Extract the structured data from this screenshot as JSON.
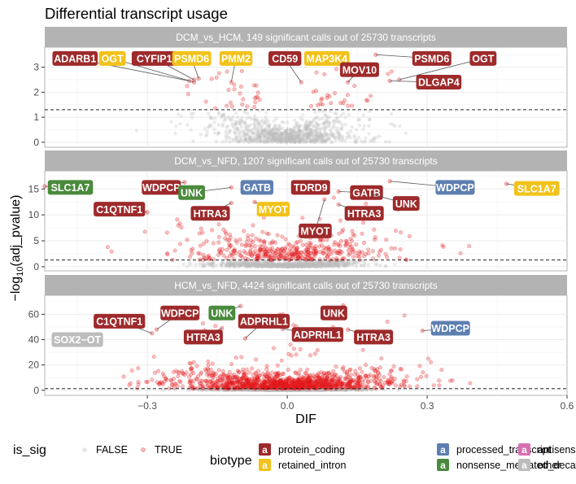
{
  "colors": {
    "protein_coding": "#9E2A2B",
    "retained_intron": "#F2C21A",
    "processed_transcript": "#5E7FB1",
    "nonsense_mediated_decay": "#4A8A3C",
    "antisense": "#D86FB1",
    "other": "#BDBDBD",
    "sig_true": "#E31A1C",
    "sig_false": "#BDBDBD",
    "strip_bg": "#B3B3B3",
    "panel_grid": "#EBEBEB"
  },
  "chart_data": {
    "type": "scatter",
    "title": "Differential transcript usage",
    "xlabel": "DIF",
    "ylabel": "−log10(adj_pvalue)",
    "xlim": [
      -0.52,
      0.6
    ],
    "xticks": [
      -0.3,
      0.0,
      0.3,
      0.6
    ],
    "xtick_labels": [
      "−0.3",
      "0.0",
      "0.3",
      "0.6"
    ],
    "significance_line": "dashed horizontal line at adj_pvalue = 0.05",
    "legend_placement": "bottom",
    "legend": {
      "is_sig_title": "is_sig",
      "is_sig_items": [
        "FALSE",
        "TRUE"
      ],
      "biotype_title": "biotype",
      "biotype_items": [
        {
          "key": "protein_coding",
          "label": "protein_coding"
        },
        {
          "key": "retained_intron",
          "label": "retained_intron"
        },
        {
          "key": "processed_transcript",
          "label": "processed_transcript"
        },
        {
          "key": "nonsense_mediated_decay",
          "label": "nonsense_mediated_decay"
        },
        {
          "key": "antisense",
          "label": "antisense"
        },
        {
          "key": "other",
          "label": "other"
        }
      ],
      "key_glyph": "a"
    },
    "panels": [
      {
        "title": "DCM_vs_HCM, 149 significant calls out of 25730 transcripts",
        "ylim": [
          -0.2,
          3.8
        ],
        "yticks": [
          0,
          1,
          2,
          3
        ],
        "threshold": 1.3,
        "labels": [
          {
            "text": "ADARB1",
            "biotype": "protein_coding",
            "x": -0.21,
            "y": 2.45,
            "lx": -0.455,
            "ly": 3.35
          },
          {
            "text": "OGT",
            "biotype": "retained_intron",
            "x": -0.2,
            "y": 2.4,
            "lx": -0.375,
            "ly": 3.35
          },
          {
            "text": "CYFIP1",
            "biotype": "protein_coding",
            "x": -0.2,
            "y": 2.5,
            "lx": -0.285,
            "ly": 3.35
          },
          {
            "text": "PSMD6",
            "biotype": "retained_intron",
            "x": -0.19,
            "y": 2.55,
            "lx": -0.205,
            "ly": 3.35
          },
          {
            "text": "PMM2",
            "biotype": "retained_intron",
            "x": -0.12,
            "y": 2.4,
            "lx": -0.11,
            "ly": 3.35
          },
          {
            "text": "CD59",
            "biotype": "protein_coding",
            "x": 0.03,
            "y": 2.4,
            "lx": -0.005,
            "ly": 3.35
          },
          {
            "text": "MAP3K4",
            "biotype": "retained_intron",
            "x": 0.13,
            "y": 2.9,
            "lx": 0.085,
            "ly": 3.35
          },
          {
            "text": "MOV10",
            "biotype": "protein_coding",
            "x": 0.13,
            "y": 2.4,
            "lx": 0.155,
            "ly": 2.9
          },
          {
            "text": "PSMD6",
            "biotype": "protein_coding",
            "x": 0.19,
            "y": 3.5,
            "lx": 0.31,
            "ly": 3.35
          },
          {
            "text": "OGT",
            "biotype": "protein_coding",
            "x": 0.24,
            "y": 2.5,
            "lx": 0.42,
            "ly": 3.35
          },
          {
            "text": "DLGAP4",
            "biotype": "protein_coding",
            "x": 0.22,
            "y": 2.45,
            "lx": 0.325,
            "ly": 2.4
          }
        ]
      },
      {
        "title": "DCM_vs_NFD, 1207 significant calls out of 25730 transcripts",
        "ylim": [
          -0.8,
          18.5
        ],
        "yticks": [
          0,
          5,
          10,
          15
        ],
        "threshold": 1.3,
        "labels": [
          {
            "text": "SLC1A7",
            "biotype": "nonsense_mediated_decay",
            "x": -0.52,
            "y": 15.5,
            "lx": -0.465,
            "ly": 15.3
          },
          {
            "text": "WDPCP",
            "biotype": "protein_coding",
            "x": -0.22,
            "y": 16.3,
            "lx": -0.27,
            "ly": 15.3
          },
          {
            "text": "C1QTNF1",
            "biotype": "protein_coding",
            "x": -0.3,
            "y": 10.5,
            "lx": -0.36,
            "ly": 11.1
          },
          {
            "text": "UNK",
            "biotype": "nonsense_mediated_decay",
            "x": -0.12,
            "y": 15.3,
            "lx": -0.205,
            "ly": 14.3
          },
          {
            "text": "GATB",
            "biotype": "processed_transcript",
            "x": -0.08,
            "y": 15.8,
            "lx": -0.065,
            "ly": 15.3
          },
          {
            "text": "HTRA3",
            "biotype": "protein_coding",
            "x": -0.12,
            "y": 12.3,
            "lx": -0.165,
            "ly": 10.3
          },
          {
            "text": "MYOT",
            "biotype": "retained_intron",
            "x": -0.07,
            "y": 12.5,
            "lx": -0.03,
            "ly": 11.1
          },
          {
            "text": "TDRD9",
            "biotype": "protein_coding",
            "x": 0.07,
            "y": 15.5,
            "lx": 0.05,
            "ly": 15.3
          },
          {
            "text": "GATB",
            "biotype": "protein_coding",
            "x": 0.11,
            "y": 14.5,
            "lx": 0.17,
            "ly": 14.3
          },
          {
            "text": "HTRA3",
            "biotype": "protein_coding",
            "x": 0.11,
            "y": 12.0,
            "lx": 0.165,
            "ly": 10.3
          },
          {
            "text": "MYOT",
            "biotype": "protein_coding",
            "x": 0.08,
            "y": 13.0,
            "lx": 0.06,
            "ly": 6.9
          },
          {
            "text": "UNK",
            "biotype": "protein_coding",
            "x": 0.18,
            "y": 14.0,
            "lx": 0.255,
            "ly": 12.2
          },
          {
            "text": "WDPCP",
            "biotype": "processed_transcript",
            "x": 0.22,
            "y": 16.5,
            "lx": 0.36,
            "ly": 15.3
          },
          {
            "text": "SLC1A7",
            "biotype": "retained_intron",
            "x": 0.47,
            "y": 16.0,
            "lx": 0.535,
            "ly": 15.1
          }
        ]
      },
      {
        "title": "HCM_vs_NFD, 4424 significant calls out of 25730 transcripts",
        "ylim": [
          -4,
          75
        ],
        "yticks": [
          0,
          20,
          40,
          60
        ],
        "threshold": 1.3,
        "labels": [
          {
            "text": "SOX2−OT",
            "biotype": "other",
            "x": -0.44,
            "y": 40.0,
            "lx": -0.45,
            "ly": 40.0
          },
          {
            "text": "C1QTNF1",
            "biotype": "protein_coding",
            "x": -0.29,
            "y": 45.0,
            "lx": -0.36,
            "ly": 54.5
          },
          {
            "text": "WDPCP",
            "biotype": "protein_coding",
            "x": -0.28,
            "y": 48.0,
            "lx": -0.23,
            "ly": 61.0
          },
          {
            "text": "UNK",
            "biotype": "nonsense_mediated_decay",
            "x": -0.1,
            "y": 66.5,
            "lx": -0.14,
            "ly": 61.0
          },
          {
            "text": "HTRA3",
            "biotype": "protein_coding",
            "x": -0.14,
            "y": 49.0,
            "lx": -0.18,
            "ly": 42.0
          },
          {
            "text": "ADPRHL1",
            "biotype": "protein_coding",
            "x": -0.09,
            "y": 41.0,
            "lx": -0.05,
            "ly": 54.5
          },
          {
            "text": "ADPRHL1",
            "biotype": "protein_coding",
            "x": -0.01,
            "y": 48.5,
            "lx": 0.065,
            "ly": 44.0
          },
          {
            "text": "UNK",
            "biotype": "protein_coding",
            "x": 0.12,
            "y": 67.0,
            "lx": 0.1,
            "ly": 61.0
          },
          {
            "text": "HTRA3",
            "biotype": "protein_coding",
            "x": 0.13,
            "y": 48.0,
            "lx": 0.185,
            "ly": 42.0
          },
          {
            "text": "WDPCP",
            "biotype": "processed_transcript",
            "x": 0.29,
            "y": 47.0,
            "lx": 0.35,
            "ly": 49.0
          }
        ]
      }
    ]
  }
}
